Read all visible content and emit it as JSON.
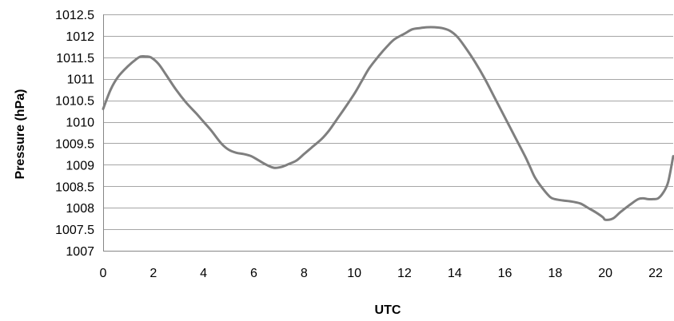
{
  "chart_data": {
    "type": "line",
    "title": "",
    "xlabel": "UTC",
    "ylabel": "Pressure (hPa)",
    "xlim": [
      0,
      22.7
    ],
    "ylim": [
      1007,
      1012.5
    ],
    "x_ticks": [
      0,
      2,
      4,
      6,
      8,
      10,
      12,
      14,
      16,
      18,
      20,
      22
    ],
    "y_ticks": [
      1007,
      1007.5,
      1008,
      1008.5,
      1009,
      1009.5,
      1010,
      1010.5,
      1011,
      1011.5,
      1012,
      1012.5
    ],
    "grid": {
      "horizontal": true,
      "vertical": false
    },
    "legend": "none",
    "series": [
      {
        "color": "#7f7f7f",
        "x": [
          0,
          0.3,
          0.6,
          1.0,
          1.3,
          1.5,
          1.7,
          1.9,
          2.2,
          2.5,
          2.9,
          3.3,
          3.7,
          4.0,
          4.3,
          4.7,
          5.0,
          5.3,
          5.6,
          5.9,
          6.2,
          6.5,
          6.8,
          7.1,
          7.4,
          7.7,
          8.0,
          8.3,
          8.7,
          9.0,
          9.3,
          9.6,
          10.0,
          10.3,
          10.6,
          11.0,
          11.3,
          11.6,
          12.0,
          12.3,
          12.6,
          12.9,
          13.2,
          13.5,
          13.8,
          14.1,
          14.4,
          14.8,
          15.2,
          15.6,
          16.0,
          16.4,
          16.8,
          17.0,
          17.2,
          17.5,
          17.8,
          18.0,
          18.3,
          18.6,
          19.0,
          19.3,
          19.6,
          19.9,
          20.0,
          20.3,
          20.6,
          21.0,
          21.3,
          21.5,
          21.7,
          21.9,
          22.1,
          22.3,
          22.5,
          22.7
        ],
        "values": [
          1010.3,
          1010.75,
          1011.05,
          1011.3,
          1011.45,
          1011.52,
          1011.52,
          1011.5,
          1011.35,
          1011.1,
          1010.75,
          1010.45,
          1010.2,
          1010.0,
          1009.8,
          1009.5,
          1009.35,
          1009.28,
          1009.25,
          1009.2,
          1009.1,
          1009.0,
          1008.93,
          1008.95,
          1009.02,
          1009.1,
          1009.25,
          1009.4,
          1009.6,
          1009.8,
          1010.05,
          1010.3,
          1010.65,
          1010.95,
          1011.25,
          1011.55,
          1011.75,
          1011.92,
          1012.05,
          1012.15,
          1012.18,
          1012.2,
          1012.2,
          1012.18,
          1012.12,
          1011.98,
          1011.75,
          1011.4,
          1011.0,
          1010.55,
          1010.1,
          1009.65,
          1009.2,
          1008.95,
          1008.7,
          1008.45,
          1008.25,
          1008.2,
          1008.17,
          1008.15,
          1008.1,
          1008.0,
          1007.9,
          1007.78,
          1007.72,
          1007.75,
          1007.9,
          1008.08,
          1008.2,
          1008.22,
          1008.2,
          1008.2,
          1008.22,
          1008.35,
          1008.6,
          1009.2
        ]
      }
    ]
  }
}
